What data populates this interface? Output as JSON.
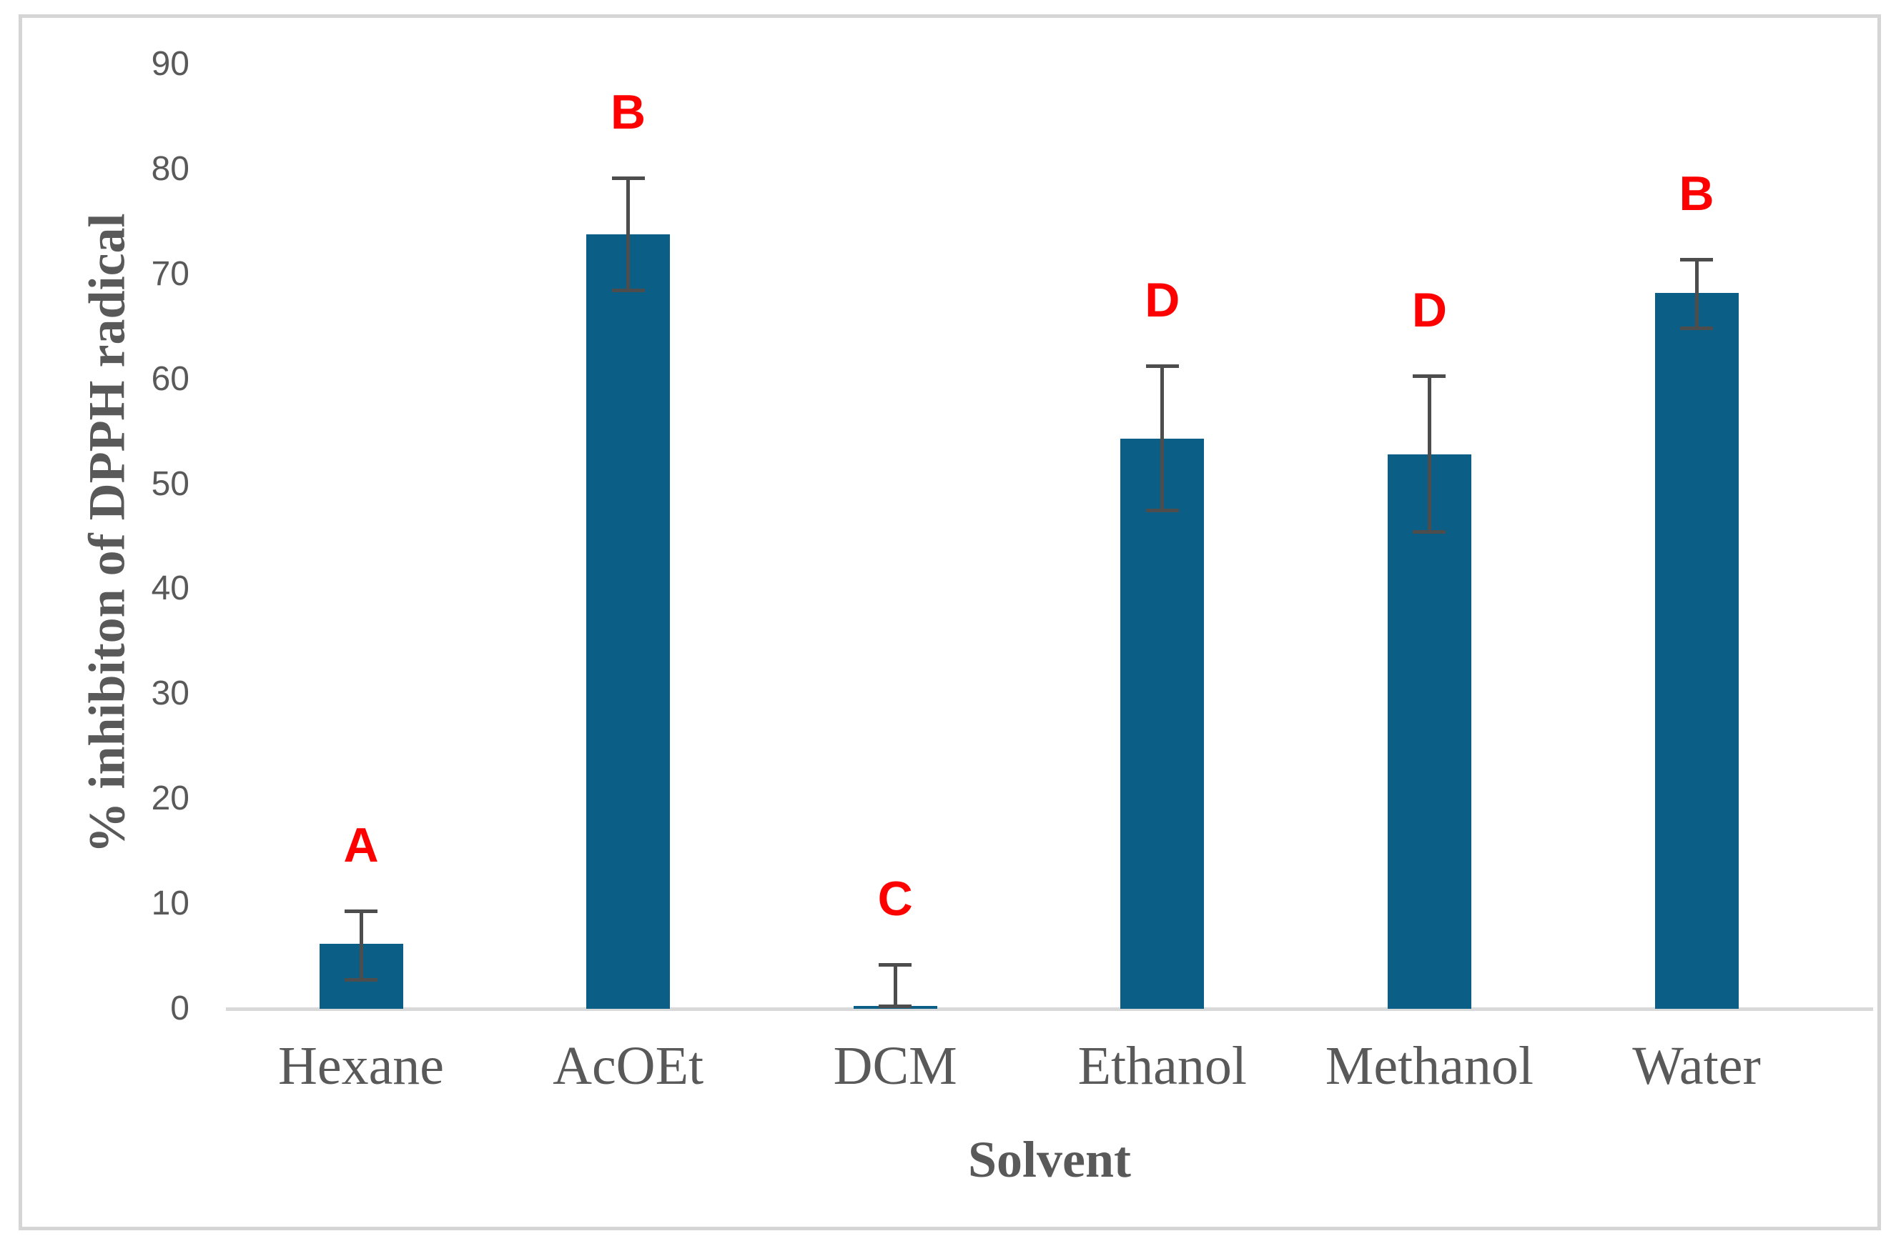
{
  "chart_data": {
    "type": "bar",
    "title": "",
    "xlabel": "Solvent",
    "ylabel": "% inhibiton of DPPH radical",
    "categories": [
      "Hexane",
      "AcOEt",
      "DCM",
      "Ethanol",
      "Methanol",
      "Water"
    ],
    "values": [
      6.2,
      73.8,
      0.3,
      54.3,
      52.8,
      68.2
    ],
    "error_high": [
      9.3,
      79.2,
      4.2,
      61.3,
      60.3,
      71.4
    ],
    "error_low": [
      2.8,
      68.5,
      0.3,
      47.5,
      45.5,
      64.9
    ],
    "significance_letters": [
      "A",
      "B",
      "C",
      "D",
      "D",
      "B"
    ],
    "ylim": [
      0,
      90
    ],
    "yticks": [
      0,
      10,
      20,
      30,
      40,
      50,
      60,
      70,
      80,
      90
    ],
    "grid": "off",
    "legend": "none",
    "bar_color": "#0B5F87",
    "error_bar_color": "#4D4D4D",
    "letter_color": "#FF0000",
    "axis_text_color": "#595959",
    "axis_line_color": "#D9D9D9",
    "frame_border_color": "#D5D5D5"
  }
}
